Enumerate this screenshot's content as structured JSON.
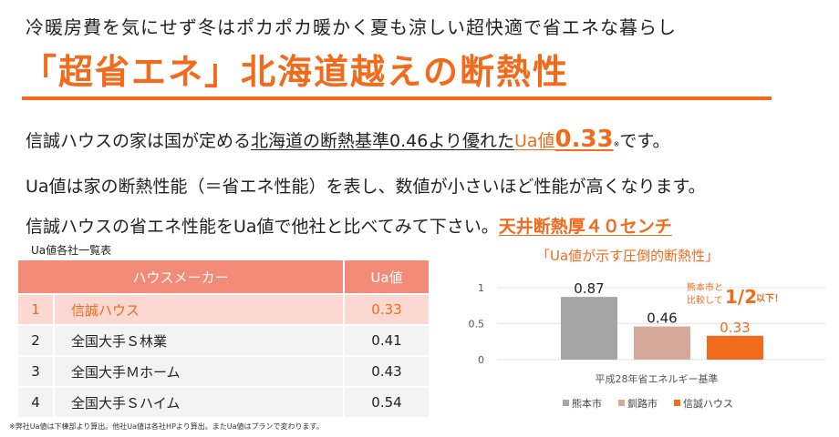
{
  "subtitle": "冷暖房費を気にせず冬はポカポカ暖かく夏も涼しい超快適で省エネな暮らし",
  "headline": "「超省エネ」北海道越えの断熱性",
  "body": {
    "line1": {
      "part1": "信誠ハウスの家は国が定める",
      "part2": "北海道の断熱基準0.46より優れた",
      "part3": "Ua値",
      "part4": "0.33",
      "part5": "※",
      "part6": "です。"
    },
    "line2": "Ua値は家の断熱性能（＝省エネ性能）を表し、数値が小さいほど性能が高くなります。",
    "line3": {
      "part1": "信誠ハウスの省エネ性能をUa値で他社と比べてみて下さい。",
      "part2": "天井断熱厚４０センチ"
    }
  },
  "table": {
    "caption": "Ua値各社一覧表",
    "headers": [
      "ハウスメーカー",
      "Ua値"
    ],
    "rows": [
      {
        "rank": "1",
        "name": "信誠ハウス",
        "value": "0.33"
      },
      {
        "rank": "2",
        "name": "全国大手Ｓ林業",
        "value": "0.41"
      },
      {
        "rank": "3",
        "name": "全国大手Ｍホーム",
        "value": "0.43"
      },
      {
        "rank": "4",
        "name": "全国大手Ｓハイム",
        "value": "0.54"
      }
    ]
  },
  "footnote": "※弊社Ua値は下棟部より算出。他社Ua値は各社HPより算出。またUa値はプランで変わります。",
  "chart_title": "「Ua値が示す圧倒的断熱性」",
  "chart_data": {
    "type": "bar",
    "categories": [
      "平成28年省エネルギー基準"
    ],
    "series": [
      {
        "name": "熊本市",
        "values": [
          0.87
        ],
        "color": "#a5a5a5"
      },
      {
        "name": "釧路市",
        "values": [
          0.46
        ],
        "color": "#d4a99a"
      },
      {
        "name": "信誠ハウス",
        "values": [
          0.33
        ],
        "color": "#f26a1b"
      }
    ],
    "data_labels": [
      "0.87",
      "0.46",
      "0.33"
    ],
    "y_ticks": [
      "0",
      "0.5",
      "1"
    ],
    "ylim": [
      0,
      1.2
    ],
    "xlabel": "平成28年省エネルギー基準",
    "legend_position": "bottom",
    "annotation": {
      "line1": "熊本市と",
      "line2": "比較して",
      "big": "1/2",
      "small": "以下！"
    }
  }
}
